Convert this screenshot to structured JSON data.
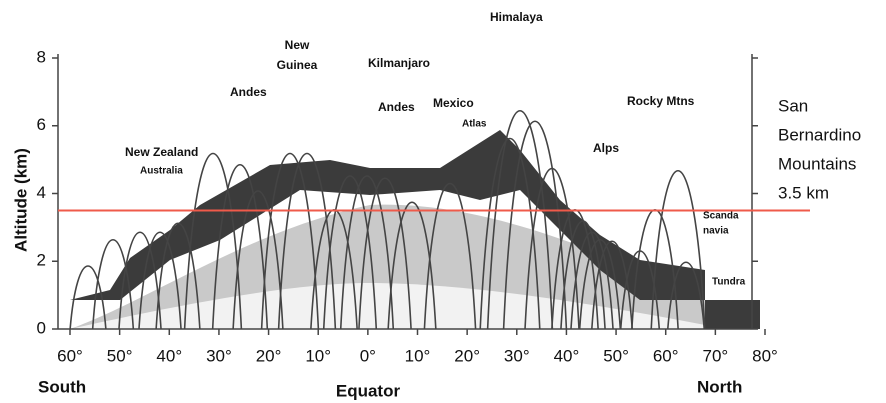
{
  "chart_data": {
    "type": "profile",
    "y_label": "Altitude (km)",
    "xlim": [
      -60,
      80
    ],
    "xticks": [
      {
        "value": -60,
        "label": "60°"
      },
      {
        "value": -50,
        "label": "50°"
      },
      {
        "value": -40,
        "label": "40°"
      },
      {
        "value": -30,
        "label": "30°"
      },
      {
        "value": -20,
        "label": "20°"
      },
      {
        "value": -10,
        "label": "10°"
      },
      {
        "value": 0,
        "label": "0°"
      },
      {
        "value": 10,
        "label": "10°"
      },
      {
        "value": 20,
        "label": "20°"
      },
      {
        "value": 30,
        "label": "30°"
      },
      {
        "value": 40,
        "label": "40°"
      },
      {
        "value": 50,
        "label": "50°"
      },
      {
        "value": 60,
        "label": "60°"
      },
      {
        "value": 70,
        "label": "70°"
      },
      {
        "value": 80,
        "label": "80°"
      }
    ],
    "ylim": [
      0,
      8
    ],
    "yticks": [
      0,
      2,
      4,
      6,
      8
    ],
    "x_region_labels": [
      "South",
      "Equator",
      "North"
    ],
    "annotations": [
      "New Zealand",
      "Australia",
      "Andes",
      "New",
      "Guinea",
      "Kilmanjaro",
      "Andes",
      "Mexico",
      "Atlas",
      "Himalaya",
      "Alps",
      "Rocky Mtns",
      "Scanda",
      "navia",
      "Tundra"
    ],
    "reference_line": {
      "value": 3.5,
      "color": "#ef5a4a",
      "label": [
        "San",
        "Bernardino",
        "Mountains",
        "3.5 km"
      ]
    }
  }
}
